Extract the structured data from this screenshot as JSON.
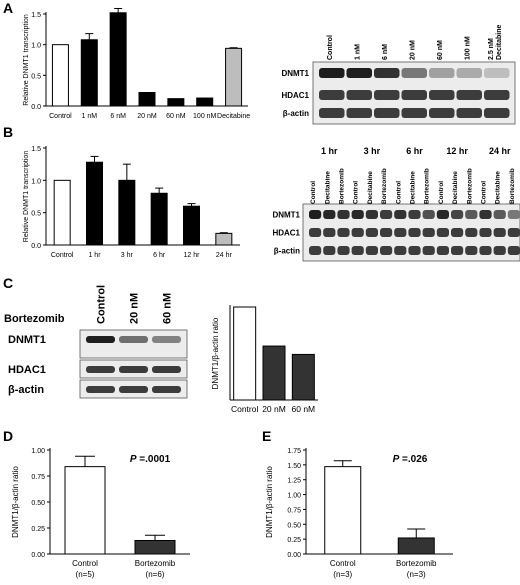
{
  "panels": {
    "A": {
      "label": "A",
      "blot": {
        "lanes": [
          "Control",
          "1 nM",
          "6 nM",
          "20 nM",
          "60 nM",
          "100 nM",
          "2.5 nM\nDecitabine"
        ],
        "rows": [
          "DNMT1",
          "HDAC1",
          "β-actin"
        ],
        "dnmt1_intensity": [
          1.0,
          1.0,
          0.9,
          0.55,
          0.35,
          0.3,
          0.2
        ]
      }
    },
    "B": {
      "label": "B",
      "blot": {
        "timepoints": [
          "1 hr",
          "3 hr",
          "6 hr",
          "12 hr",
          "24 hr"
        ],
        "lanes": [
          "Control",
          "Decitabine",
          "Bortezomib",
          "Control",
          "Decitabine",
          "Bortezomib",
          "Control",
          "Decitabine",
          "Bortezomib",
          "Control",
          "Decitabine",
          "Bortezomib",
          "Control",
          "Decitabine",
          "Bortezomib"
        ],
        "rows": [
          "DNMT1",
          "HDAC1",
          "β-actin"
        ],
        "dnmt1_intensity": [
          1.0,
          0.95,
          0.9,
          0.95,
          0.9,
          0.85,
          0.9,
          0.85,
          0.75,
          0.95,
          0.8,
          0.7,
          0.9,
          0.7,
          0.55
        ]
      }
    },
    "C": {
      "label": "C",
      "treatment_label": "Bortezomib",
      "blot": {
        "lanes": [
          "Control",
          "20 nM",
          "60 nM"
        ],
        "rows": [
          "DNMT1",
          "HDAC1",
          "β-actin"
        ],
        "dnmt1_intensity": [
          1.0,
          0.6,
          0.5
        ]
      }
    },
    "D": {
      "label": "D"
    },
    "E": {
      "label": "E"
    }
  },
  "chart_data": [
    {
      "id": "A",
      "type": "bar",
      "categories": [
        "Control",
        "1 nM",
        "6 nM",
        "20 nM",
        "60 nM",
        "100 nM",
        "Decitabine"
      ],
      "values": [
        1.0,
        1.08,
        1.52,
        0.22,
        0.12,
        0.13,
        0.94
      ],
      "errors": [
        0,
        0.1,
        0.07,
        0,
        0,
        0,
        0.01
      ],
      "bar_colors": [
        "#ffffff",
        "#000000",
        "#000000",
        "#000000",
        "#000000",
        "#000000",
        "#bdbdbd"
      ],
      "ylabel": "Relative DNMT1 transcription",
      "ylim": [
        0,
        1.5
      ],
      "yticks": [
        "0.0",
        "0.5",
        "1.0",
        "1.5"
      ]
    },
    {
      "id": "B",
      "type": "bar",
      "categories": [
        "Control",
        "1 hr",
        "3 hr",
        "6 hr",
        "12 hr",
        "24 hr"
      ],
      "values": [
        1.0,
        1.28,
        1.0,
        0.8,
        0.6,
        0.18
      ],
      "errors": [
        0,
        0.09,
        0.25,
        0.08,
        0.04,
        0.01
      ],
      "bar_colors": [
        "#ffffff",
        "#000000",
        "#000000",
        "#000000",
        "#000000",
        "#bdbdbd"
      ],
      "ylabel": "Relative DNMT1 transcription",
      "ylim": [
        0,
        1.5
      ],
      "yticks": [
        "0.0",
        "0.5",
        "1.0",
        "1.5"
      ]
    },
    {
      "id": "C",
      "type": "bar",
      "categories": [
        "Control",
        "20 nM",
        "60 nM"
      ],
      "values": [
        1.0,
        0.58,
        0.49
      ],
      "bar_colors": [
        "#ffffff",
        "#333333",
        "#333333"
      ],
      "ylabel": "DNMT1/β-actin ratio",
      "ylim": [
        0,
        1.0
      ]
    },
    {
      "id": "D",
      "type": "bar",
      "categories": [
        "Control\n(n=5)",
        "Bortezomib\n(n=6)"
      ],
      "values": [
        0.84,
        0.13
      ],
      "errors": [
        0.1,
        0.05
      ],
      "bar_colors": [
        "#ffffff",
        "#333333"
      ],
      "ylabel": "DNMT1/β-actin ratio",
      "ylim": [
        0,
        1.0
      ],
      "yticks": [
        "0.00",
        "0.25",
        "0.50",
        "0.75",
        "1.00"
      ],
      "annotation": {
        "italic": "P",
        "text": " =.0001"
      }
    },
    {
      "id": "E",
      "type": "bar",
      "categories": [
        "Control\n(n=3)",
        "Bortezomib\n(n=3)"
      ],
      "values": [
        1.47,
        0.27
      ],
      "errors": [
        0.1,
        0.15
      ],
      "bar_colors": [
        "#ffffff",
        "#333333"
      ],
      "ylabel": "DNMT1/β-actin ratio",
      "ylim": [
        0,
        1.75
      ],
      "yticks": [
        "0.00",
        "0.25",
        "0.50",
        "0.75",
        "1.00",
        "1.25",
        "1.50",
        "1.75"
      ],
      "annotation": {
        "italic": "P",
        "text": " =.026"
      }
    }
  ]
}
